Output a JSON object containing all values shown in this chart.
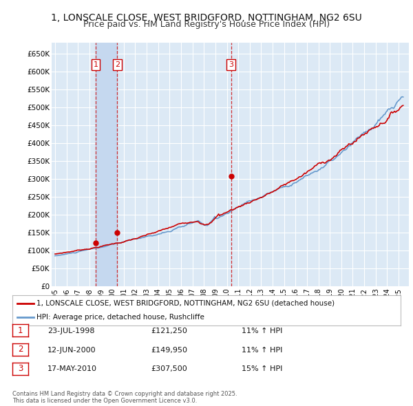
{
  "title": "1, LONSCALE CLOSE, WEST BRIDGFORD, NOTTINGHAM, NG2 6SU",
  "subtitle": "Price paid vs. HM Land Registry's House Price Index (HPI)",
  "title_fontsize": 10,
  "subtitle_fontsize": 9,
  "ylim": [
    0,
    680000
  ],
  "yticks": [
    0,
    50000,
    100000,
    150000,
    200000,
    250000,
    300000,
    350000,
    400000,
    450000,
    500000,
    550000,
    600000,
    650000
  ],
  "ytick_labels": [
    "£0",
    "£50K",
    "£100K",
    "£150K",
    "£200K",
    "£250K",
    "£300K",
    "£350K",
    "£400K",
    "£450K",
    "£500K",
    "£550K",
    "£600K",
    "£650K"
  ],
  "background_color": "#ffffff",
  "plot_bg_color": "#dce9f5",
  "grid_color": "#ffffff",
  "highlight_color": "#c5d8ef",
  "transactions": [
    {
      "num": 1,
      "date": "23-JUL-1998",
      "price": 121250,
      "year": 1998.55,
      "hpi_pct": "11% ↑ HPI"
    },
    {
      "num": 2,
      "date": "12-JUN-2000",
      "price": 149950,
      "year": 2000.44,
      "hpi_pct": "11% ↑ HPI"
    },
    {
      "num": 3,
      "date": "17-MAY-2010",
      "price": 307500,
      "year": 2010.37,
      "hpi_pct": "15% ↑ HPI"
    }
  ],
  "legend_line1": "1, LONSCALE CLOSE, WEST BRIDGFORD, NOTTINGHAM, NG2 6SU (detached house)",
  "legend_line2": "HPI: Average price, detached house, Rushcliffe",
  "footnote": "Contains HM Land Registry data © Crown copyright and database right 2025.\nThis data is licensed under the Open Government Licence v3.0.",
  "red_color": "#cc0000",
  "blue_color": "#6699cc",
  "marker_box_color": "#cc0000"
}
